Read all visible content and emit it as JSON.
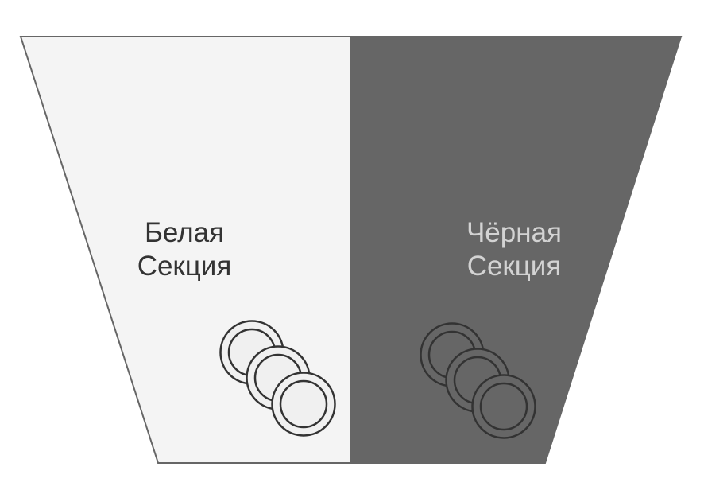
{
  "sections": {
    "white": {
      "line1": "Белая",
      "line2": "Секция",
      "fill": "#f4f4f4",
      "text_color": "#333333",
      "plate_fill": "#f0f0f0",
      "plate_stroke": "#333333"
    },
    "black": {
      "line1": "Чёрная",
      "line2": "Секция",
      "fill": "#666666",
      "text_color": "#d3d3d3",
      "plate_fill": "#666666",
      "plate_stroke": "#333333"
    }
  },
  "outline_color": "#666666",
  "icons": [
    "plate-stack-icon",
    "plate-stack-icon"
  ]
}
